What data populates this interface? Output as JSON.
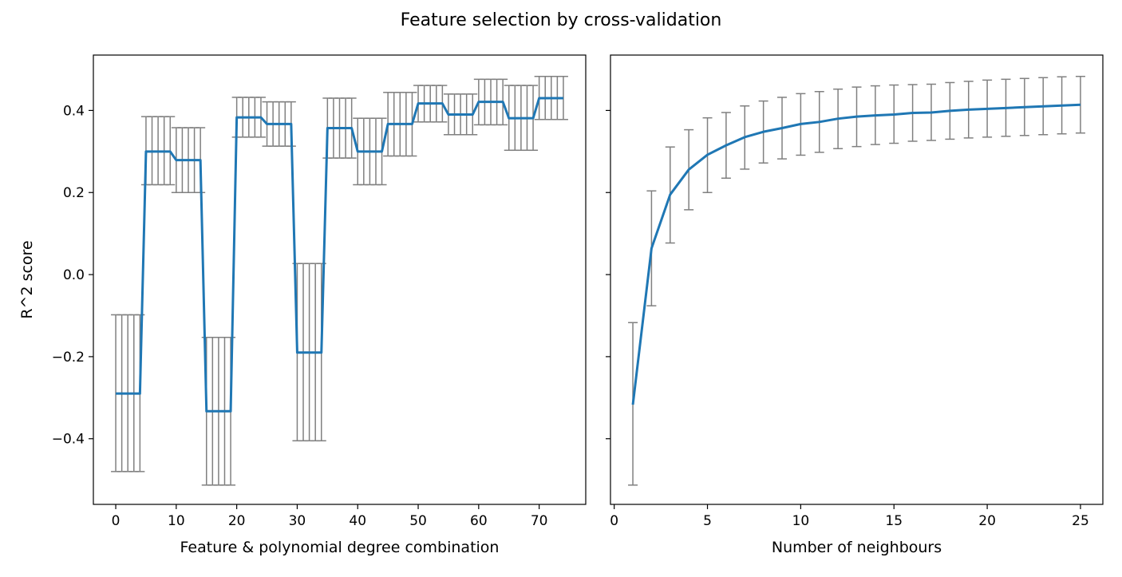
{
  "figure": {
    "title": "Feature selection by cross-validation"
  },
  "colors": {
    "line": "#1f77b4",
    "errorbar": "#808080"
  },
  "chart_data": [
    {
      "type": "line",
      "subtype": "errorbar",
      "xlabel": "Feature & polynomial degree combination",
      "ylabel": "R^2 score",
      "xlim": [
        -3.7,
        77.7
      ],
      "ylim": [
        -0.56,
        0.535
      ],
      "xticks": [
        0,
        10,
        20,
        30,
        40,
        50,
        60,
        70
      ],
      "yticks": [
        -0.4,
        -0.2,
        0.0,
        0.2,
        0.4
      ],
      "xtick_labels": [
        "0",
        "10",
        "20",
        "30",
        "40",
        "50",
        "60",
        "70"
      ],
      "ytick_labels": [
        "−0.4",
        "−0.2",
        "0.0",
        "0.2",
        "0.4"
      ],
      "groups": [
        {
          "x_start": 0,
          "x_end": 4,
          "mean": -0.29,
          "lower": -0.48,
          "upper": -0.098
        },
        {
          "x_start": 5,
          "x_end": 9,
          "mean": 0.3,
          "lower": 0.219,
          "upper": 0.385
        },
        {
          "x_start": 10,
          "x_end": 14,
          "mean": 0.279,
          "lower": 0.2,
          "upper": 0.358
        },
        {
          "x_start": 15,
          "x_end": 19,
          "mean": -0.333,
          "lower": -0.513,
          "upper": -0.153
        },
        {
          "x_start": 20,
          "x_end": 24,
          "mean": 0.383,
          "lower": 0.335,
          "upper": 0.432
        },
        {
          "x_start": 25,
          "x_end": 29,
          "mean": 0.367,
          "lower": 0.313,
          "upper": 0.421
        },
        {
          "x_start": 30,
          "x_end": 34,
          "mean": -0.19,
          "lower": -0.405,
          "upper": 0.027
        },
        {
          "x_start": 35,
          "x_end": 39,
          "mean": 0.357,
          "lower": 0.284,
          "upper": 0.43
        },
        {
          "x_start": 40,
          "x_end": 44,
          "mean": 0.3,
          "lower": 0.219,
          "upper": 0.381
        },
        {
          "x_start": 45,
          "x_end": 49,
          "mean": 0.367,
          "lower": 0.289,
          "upper": 0.444
        },
        {
          "x_start": 50,
          "x_end": 54,
          "mean": 0.417,
          "lower": 0.372,
          "upper": 0.461
        },
        {
          "x_start": 55,
          "x_end": 59,
          "mean": 0.39,
          "lower": 0.341,
          "upper": 0.44
        },
        {
          "x_start": 60,
          "x_end": 64,
          "mean": 0.421,
          "lower": 0.365,
          "upper": 0.476
        },
        {
          "x_start": 65,
          "x_end": 69,
          "mean": 0.381,
          "lower": 0.303,
          "upper": 0.461
        },
        {
          "x_start": 70,
          "x_end": 74,
          "mean": 0.43,
          "lower": 0.378,
          "upper": 0.483
        }
      ],
      "grid": false
    },
    {
      "type": "line",
      "subtype": "errorbar",
      "xlabel": "Number of neighbours",
      "ylabel": "",
      "shared_y": true,
      "xlim": [
        -0.2,
        26.2
      ],
      "ylim": [
        -0.56,
        0.535
      ],
      "xticks": [
        0,
        5,
        10,
        15,
        20,
        25
      ],
      "xtick_labels": [
        "0",
        "5",
        "10",
        "15",
        "20",
        "25"
      ],
      "x": [
        1,
        2,
        3,
        4,
        5,
        6,
        7,
        8,
        9,
        10,
        11,
        12,
        13,
        14,
        15,
        16,
        17,
        18,
        19,
        20,
        21,
        22,
        23,
        24,
        25
      ],
      "mean": [
        -0.317,
        0.064,
        0.195,
        0.256,
        0.292,
        0.315,
        0.335,
        0.348,
        0.357,
        0.367,
        0.372,
        0.38,
        0.385,
        0.388,
        0.39,
        0.394,
        0.395,
        0.399,
        0.402,
        0.404,
        0.406,
        0.408,
        0.41,
        0.412,
        0.414
      ],
      "lower": [
        -0.513,
        -0.076,
        0.077,
        0.158,
        0.2,
        0.235,
        0.257,
        0.272,
        0.282,
        0.291,
        0.298,
        0.307,
        0.312,
        0.317,
        0.32,
        0.325,
        0.327,
        0.33,
        0.333,
        0.335,
        0.337,
        0.339,
        0.341,
        0.343,
        0.345
      ],
      "upper": [
        -0.117,
        0.204,
        0.311,
        0.353,
        0.382,
        0.395,
        0.411,
        0.423,
        0.432,
        0.441,
        0.446,
        0.452,
        0.457,
        0.46,
        0.462,
        0.463,
        0.464,
        0.468,
        0.471,
        0.474,
        0.476,
        0.478,
        0.48,
        0.482,
        0.483
      ],
      "grid": false
    }
  ]
}
